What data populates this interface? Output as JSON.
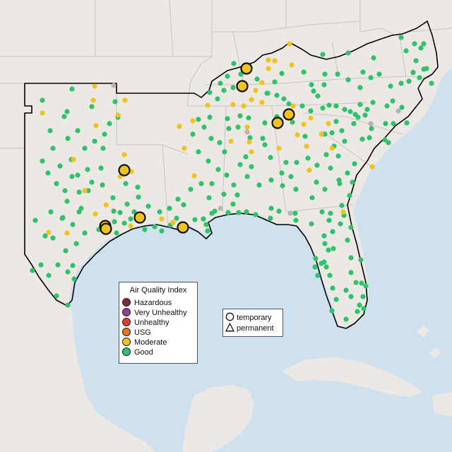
{
  "legend": {
    "title": "Air Quality Index",
    "categories": [
      {
        "label": "Hazardous",
        "color": "#7e2a33"
      },
      {
        "label": "Very Unhealthy",
        "color": "#8f3f97"
      },
      {
        "label": "Unhealthy",
        "color": "#e03c31"
      },
      {
        "label": "USG",
        "color": "#e5751f"
      },
      {
        "label": "Moderate",
        "color": "#f2c21d"
      },
      {
        "label": "Good",
        "color": "#2ec26b"
      }
    ],
    "types": [
      {
        "label": "temporary",
        "shape": "circle"
      },
      {
        "label": "permanent",
        "shape": "triangle"
      }
    ]
  },
  "colors": {
    "water": "#cfe0ee",
    "land": "#ece8e4",
    "no_data": "#b5b5b5",
    "state_border": "#c9c3bf",
    "region_outline": "#000000"
  },
  "monitors": [
    {
      "category": "Moderate",
      "type": "temporary",
      "count": 10
    },
    {
      "category": "Moderate",
      "type": "permanent",
      "count": 50
    },
    {
      "category": "Good",
      "type": "permanent",
      "count": 260
    },
    {
      "category": "no_data",
      "type": "permanent",
      "count": 8
    }
  ]
}
